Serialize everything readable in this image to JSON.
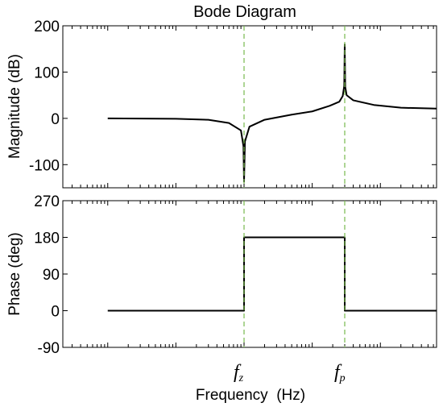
{
  "chart_data": [
    {
      "type": "line",
      "title": "Bode Diagram",
      "ylabel": "Magnitude (dB)",
      "ylim": [
        -150,
        200
      ],
      "yticks": [
        "200",
        "100",
        "0",
        "-100"
      ],
      "yticks_values": [
        200,
        100,
        0,
        -100
      ],
      "x_scale": "log",
      "grid": false,
      "series": [
        {
          "x": [
            0.01,
            0.1,
            0.3,
            0.6,
            0.9,
            0.98,
            1.0,
            1.03,
            1.2,
            2,
            5,
            10,
            18,
            25,
            28,
            29.5,
            30,
            30.5,
            32,
            40,
            80,
            200,
            1000
          ],
          "values": [
            0,
            -1,
            -3,
            -10,
            -26,
            -60,
            -137,
            -50,
            -18,
            -3,
            8,
            15,
            27,
            36,
            48,
            70,
            160,
            68,
            50,
            39,
            29,
            23,
            21
          ],
          "color": "#000000"
        }
      ]
    },
    {
      "type": "line",
      "ylabel": "Phase (deg)",
      "xlabel": "Frequency  (Hz)",
      "ylim": [
        -90,
        270
      ],
      "yticks": [
        "270",
        "180",
        "90",
        "0",
        "-90"
      ],
      "yticks_values": [
        270,
        180,
        90,
        0,
        -90
      ],
      "x_scale": "log",
      "grid": false,
      "series": [
        {
          "x": [
            0.01,
            1.0,
            1.0,
            30,
            30,
            1000
          ],
          "values": [
            0,
            0,
            180,
            180,
            0,
            0
          ],
          "color": "#000000"
        }
      ]
    }
  ],
  "markers": {
    "color": "#77b94d",
    "lines": [
      {
        "x": 1.0,
        "label": "f",
        "sub": "z"
      },
      {
        "x": 30,
        "label": "f",
        "sub": "p"
      }
    ]
  }
}
